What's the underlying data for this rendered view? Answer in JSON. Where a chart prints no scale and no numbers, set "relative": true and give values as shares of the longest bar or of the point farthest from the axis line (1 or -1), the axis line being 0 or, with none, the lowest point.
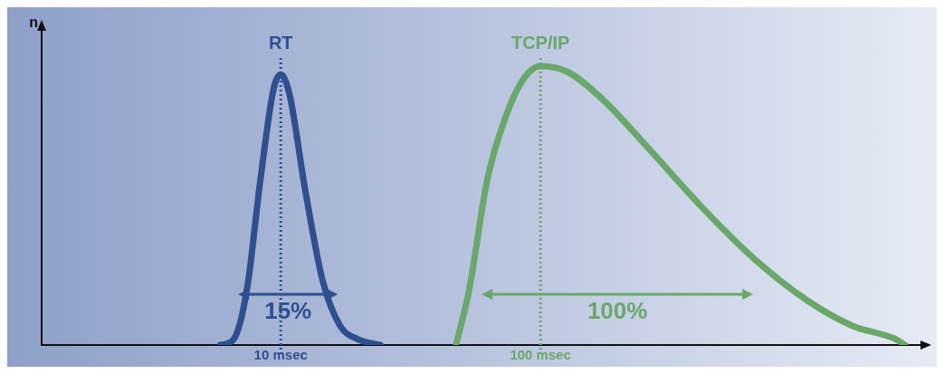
{
  "chart_data": {
    "type": "line",
    "relative": true,
    "ylabel": "n",
    "log": "x",
    "xlim": [
      1.2,
      3000
    ],
    "xticks": [
      {
        "value": 10,
        "label": "10 msec"
      },
      {
        "value": 100,
        "label": "100 msec"
      }
    ],
    "series": [
      {
        "name": "RT",
        "color": "#2f4f8f",
        "x": [
          5.85,
          6.58,
          7.41,
          8.34,
          9.39,
          10,
          10.8,
          12.4,
          14.5,
          16.9,
          19.9,
          24.2
        ],
        "values": [
          0,
          0.02,
          0.2,
          0.59,
          0.92,
          0.97,
          0.9,
          0.56,
          0.23,
          0.07,
          0.02,
          0
        ]
      },
      {
        "name": "TCP/IP",
        "color": "#6aa76a",
        "x": [
          47.3,
          53.2,
          62.3,
          72.9,
          85.4,
          100,
          126.7,
          174,
          258,
          413,
          664,
          1064,
          1580,
          2345,
          2535
        ],
        "values": [
          0,
          0.2,
          0.59,
          0.81,
          0.95,
          1,
          0.98,
          0.88,
          0.71,
          0.5,
          0.31,
          0.16,
          0.07,
          0.02,
          0
        ]
      }
    ],
    "ref_lines": [
      {
        "axis": "x",
        "value": 10,
        "color": "#2f4f8f",
        "line_style": "dotted"
      },
      {
        "axis": "x",
        "value": 100,
        "color": "#6aa76a",
        "line_style": "dotted"
      }
    ],
    "annotations": [
      "15%",
      "100%"
    ],
    "legend": false,
    "grid": false,
    "marker": "none",
    "line_style": "solid"
  }
}
